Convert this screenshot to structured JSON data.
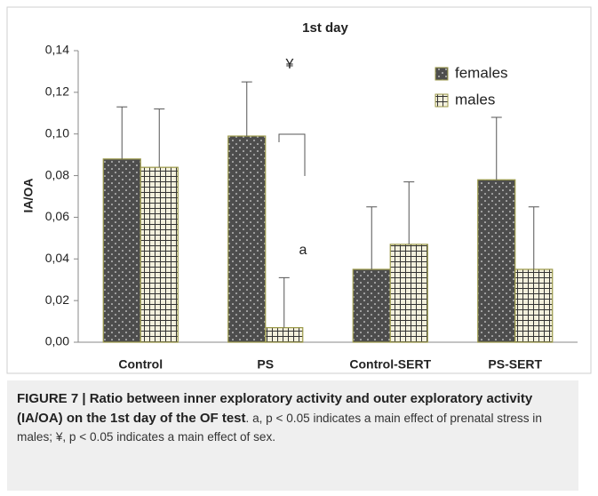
{
  "chart_data": {
    "type": "bar",
    "title": "1st day",
    "y_label": "IA/OA",
    "categories": [
      "Control",
      "PS",
      "Control-SERT",
      "PS-SERT"
    ],
    "series": [
      {
        "name": "females",
        "color": "#4d4d4d",
        "values": [
          0.088,
          0.099,
          0.035,
          0.078
        ],
        "errors": [
          0.025,
          0.026,
          0.03,
          0.03
        ]
      },
      {
        "name": "males",
        "color": "#f3f0dc",
        "values": [
          0.084,
          0.007,
          0.047,
          0.035
        ],
        "errors": [
          0.028,
          0.024,
          0.03,
          0.03
        ]
      }
    ],
    "ylim": [
      0,
      0.14
    ],
    "yticks": [
      {
        "value": 0,
        "label": "0,00"
      },
      {
        "value": 0.02,
        "label": "0,02"
      },
      {
        "value": 0.04,
        "label": "0,04"
      },
      {
        "value": 0.06,
        "label": "0,06"
      },
      {
        "value": 0.08,
        "label": "0,08"
      },
      {
        "value": 0.1,
        "label": "0,10"
      },
      {
        "value": 0.12,
        "label": "0,12"
      },
      {
        "value": 0.14,
        "label": "0,14"
      }
    ],
    "annotations": [
      "¥",
      "a"
    ],
    "legend": "top-right"
  },
  "caption": {
    "title": "FIGURE 7 | Ratio between inner exploratory activity and outer exploratory activity (IA/OA) on the 1st day of the OF test",
    "body": ". a, p < 0.05 indicates a main effect of prenatal stress in males; ¥, p < 0.05 indicates a main effect of sex."
  }
}
